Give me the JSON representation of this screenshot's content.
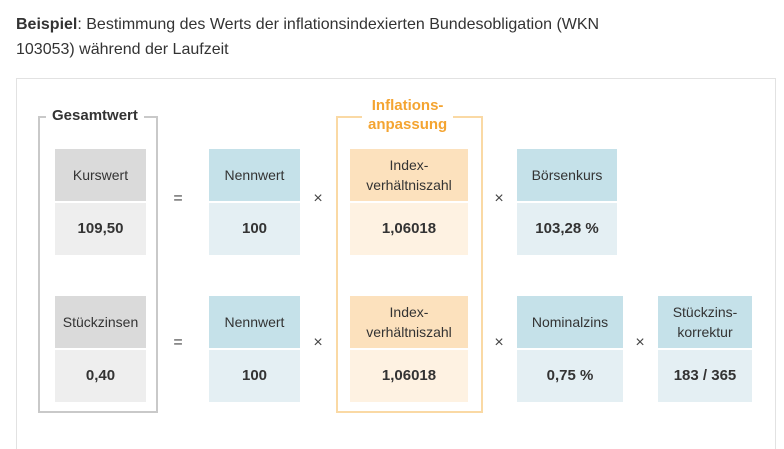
{
  "intro": {
    "label": "Beispiel",
    "text": ": Bestimmung des Werts der inflationsindexierten Bundesobligation (WKN 103053) während der Laufzeit"
  },
  "groups": {
    "total_label": "Gesamtwert",
    "inflation_label": "Inflations-\nanpassung"
  },
  "row1": {
    "kurswert": {
      "label": "Kurswert",
      "value": "109,50"
    },
    "nennwert": {
      "label": "Nennwert",
      "value": "100"
    },
    "index": {
      "label": "Index-\nverhältniszahl",
      "value": "1,06018"
    },
    "boersenkurs": {
      "label": "Börsenkurs",
      "value": "103,28 %"
    }
  },
  "row2": {
    "stueckzinsen": {
      "label": "Stückzinsen",
      "value": "0,40"
    },
    "nennwert": {
      "label": "Nennwert",
      "value": "100"
    },
    "index": {
      "label": "Index-\nverhältniszahl",
      "value": "1,06018"
    },
    "nominalzins": {
      "label": "Nominalzins",
      "value": "0,75 %"
    },
    "korrektur": {
      "label": "Stückzins-\nkorrektur",
      "value": "183 / 365"
    }
  },
  "operators": {
    "equals": "=",
    "times": "×"
  },
  "colors": {
    "gray_head": "#dadada",
    "gray_value": "#eeeeee",
    "blue_head": "#c5e1e9",
    "blue_value": "#e4eff3",
    "orange_head": "#fce1bd",
    "orange_value": "#fef2e2",
    "orange_accent": "#f4a431"
  }
}
